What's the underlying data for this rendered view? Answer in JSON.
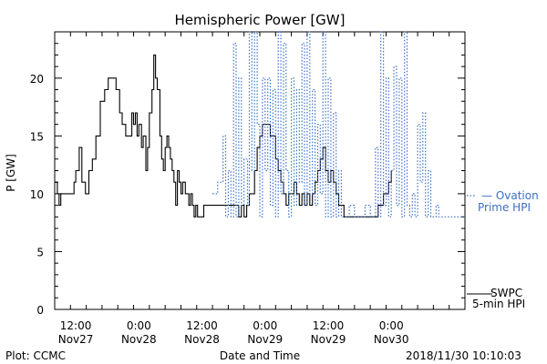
{
  "colors": {
    "observed": "#000000",
    "model": "#3b6fc4",
    "axis": "#000000"
  },
  "chart_data": {
    "type": "line",
    "title": "Hemispheric Power [GW]",
    "xlabel": "Date and Time",
    "ylabel": "P [GW]",
    "ylim": [
      0,
      24
    ],
    "xlim": [
      "2018-11-27T08:00",
      "2018-11-30T14:00"
    ],
    "y_ticks": [
      0,
      5,
      10,
      15,
      20
    ],
    "x_ticks": [
      {
        "time": "2018-11-27T12:00",
        "label1": "12:00",
        "label2": "Nov27"
      },
      {
        "time": "2018-11-28T00:00",
        "label1": "0:00",
        "label2": "Nov28"
      },
      {
        "time": "2018-11-28T12:00",
        "label1": "12:00",
        "label2": "Nov28"
      },
      {
        "time": "2018-11-29T00:00",
        "label1": "0:00",
        "label2": "Nov29"
      },
      {
        "time": "2018-11-29T12:00",
        "label1": "12:00",
        "label2": "Nov29"
      },
      {
        "time": "2018-11-30T00:00",
        "label1": "0:00",
        "label2": "Nov30"
      }
    ],
    "legend": [
      {
        "label_line1": "— Ovation",
        "label_line2": "Prime HPI"
      },
      {
        "label_line1": "SWPC",
        "label_line2": "5-min HPI"
      }
    ],
    "series": [
      {
        "name": "SWPC 5-min HPI",
        "style": "solid",
        "points": [
          [
            "2018-11-27T08:00",
            11
          ],
          [
            "2018-11-27T08:30",
            10
          ],
          [
            "2018-11-27T08:50",
            9
          ],
          [
            "2018-11-27T09:10",
            10
          ],
          [
            "2018-11-27T10:00",
            10
          ],
          [
            "2018-11-27T11:00",
            10
          ],
          [
            "2018-11-27T11:40",
            11
          ],
          [
            "2018-11-27T12:00",
            12
          ],
          [
            "2018-11-27T12:40",
            14
          ],
          [
            "2018-11-27T13:10",
            11
          ],
          [
            "2018-11-27T13:50",
            10
          ],
          [
            "2018-11-27T14:30",
            12
          ],
          [
            "2018-11-27T15:10",
            13
          ],
          [
            "2018-11-27T15:50",
            15
          ],
          [
            "2018-11-27T16:40",
            18
          ],
          [
            "2018-11-27T17:30",
            19
          ],
          [
            "2018-11-27T18:10",
            20
          ],
          [
            "2018-11-27T19:10",
            20
          ],
          [
            "2018-11-27T19:40",
            19
          ],
          [
            "2018-11-27T20:20",
            17
          ],
          [
            "2018-11-27T20:50",
            16
          ],
          [
            "2018-11-27T21:30",
            15
          ],
          [
            "2018-11-27T22:10",
            15
          ],
          [
            "2018-11-27T22:40",
            17
          ],
          [
            "2018-11-27T23:00",
            16
          ],
          [
            "2018-11-27T23:20",
            17
          ],
          [
            "2018-11-27T23:40",
            15
          ],
          [
            "2018-11-28T00:00",
            16
          ],
          [
            "2018-11-28T00:30",
            14
          ],
          [
            "2018-11-28T00:50",
            15
          ],
          [
            "2018-11-28T01:20",
            12
          ],
          [
            "2018-11-28T01:40",
            14
          ],
          [
            "2018-11-28T02:00",
            17
          ],
          [
            "2018-11-28T02:30",
            19
          ],
          [
            "2018-11-28T02:50",
            22
          ],
          [
            "2018-11-28T03:10",
            20
          ],
          [
            "2018-11-28T03:30",
            19
          ],
          [
            "2018-11-28T04:00",
            15
          ],
          [
            "2018-11-28T04:20",
            13
          ],
          [
            "2018-11-28T04:40",
            12
          ],
          [
            "2018-11-28T05:00",
            14
          ],
          [
            "2018-11-28T05:20",
            15
          ],
          [
            "2018-11-28T05:40",
            14
          ],
          [
            "2018-11-28T06:00",
            13
          ],
          [
            "2018-11-28T06:20",
            12
          ],
          [
            "2018-11-28T06:40",
            11
          ],
          [
            "2018-11-28T07:00",
            9
          ],
          [
            "2018-11-28T07:20",
            12
          ],
          [
            "2018-11-28T07:40",
            11
          ],
          [
            "2018-11-28T08:00",
            10
          ],
          [
            "2018-11-28T08:20",
            11
          ],
          [
            "2018-11-28T08:50",
            10
          ],
          [
            "2018-11-28T09:10",
            10
          ],
          [
            "2018-11-28T09:30",
            9
          ],
          [
            "2018-11-28T09:50",
            10
          ],
          [
            "2018-11-28T10:10",
            9
          ],
          [
            "2018-11-28T10:30",
            8
          ],
          [
            "2018-11-28T10:50",
            9
          ],
          [
            "2018-11-28T11:10",
            8
          ],
          [
            "2018-11-28T11:40",
            8
          ],
          [
            "2018-11-28T12:00",
            8
          ],
          [
            "2018-11-28T12:20",
            9
          ],
          [
            "2018-11-28T14:00",
            9
          ],
          [
            "2018-11-28T16:00",
            9
          ],
          [
            "2018-11-28T17:00",
            9
          ],
          [
            "2018-11-28T18:00",
            9
          ],
          [
            "2018-11-28T18:40",
            9
          ],
          [
            "2018-11-28T19:00",
            8
          ],
          [
            "2018-11-28T19:30",
            9
          ],
          [
            "2018-11-28T20:00",
            8
          ],
          [
            "2018-11-28T20:30",
            9
          ],
          [
            "2018-11-28T21:00",
            10
          ],
          [
            "2018-11-28T21:30",
            10
          ],
          [
            "2018-11-28T22:00",
            12
          ],
          [
            "2018-11-28T22:30",
            14
          ],
          [
            "2018-11-28T23:00",
            15
          ],
          [
            "2018-11-28T23:30",
            16
          ],
          [
            "2018-11-29T00:00",
            16
          ],
          [
            "2018-11-29T00:30",
            16
          ],
          [
            "2018-11-29T01:00",
            15
          ],
          [
            "2018-11-29T01:30",
            15
          ],
          [
            "2018-11-29T02:00",
            13
          ],
          [
            "2018-11-29T02:30",
            12
          ],
          [
            "2018-11-29T03:00",
            11
          ],
          [
            "2018-11-29T03:30",
            10
          ],
          [
            "2018-11-29T04:00",
            9
          ],
          [
            "2018-11-29T04:30",
            10
          ],
          [
            "2018-11-29T05:00",
            10
          ],
          [
            "2018-11-29T05:30",
            11
          ],
          [
            "2018-11-29T06:00",
            10
          ],
          [
            "2018-11-29T06:30",
            9
          ],
          [
            "2018-11-29T07:00",
            10
          ],
          [
            "2018-11-29T07:30",
            9
          ],
          [
            "2018-11-29T08:00",
            10
          ],
          [
            "2018-11-29T08:30",
            9
          ],
          [
            "2018-11-29T09:00",
            10
          ],
          [
            "2018-11-29T09:30",
            11
          ],
          [
            "2018-11-29T10:00",
            12
          ],
          [
            "2018-11-29T10:30",
            13
          ],
          [
            "2018-11-29T11:00",
            14
          ],
          [
            "2018-11-29T11:30",
            12
          ],
          [
            "2018-11-29T12:00",
            11
          ],
          [
            "2018-11-29T12:30",
            12
          ],
          [
            "2018-11-29T13:00",
            11
          ],
          [
            "2018-11-29T13:30",
            10
          ],
          [
            "2018-11-29T14:00",
            9
          ],
          [
            "2018-11-29T14:30",
            9
          ],
          [
            "2018-11-29T15:00",
            8
          ],
          [
            "2018-11-29T18:00",
            8
          ],
          [
            "2018-11-29T21:00",
            8
          ],
          [
            "2018-11-29T21:30",
            9
          ],
          [
            "2018-11-29T22:00",
            9
          ],
          [
            "2018-11-29T22:30",
            10
          ],
          [
            "2018-11-29T23:00",
            10
          ],
          [
            "2018-11-29T23:30",
            11
          ],
          [
            "2018-11-30T00:00",
            12
          ]
        ]
      },
      {
        "name": "Ovation Prime HPI",
        "style": "dotted",
        "points": [
          [
            "2018-11-28T14:00",
            10
          ],
          [
            "2018-11-28T15:00",
            11
          ],
          [
            "2018-11-28T16:00",
            15
          ],
          [
            "2018-11-28T16:30",
            8
          ],
          [
            "2018-11-28T17:00",
            12
          ],
          [
            "2018-11-28T17:30",
            8
          ],
          [
            "2018-11-28T18:00",
            23
          ],
          [
            "2018-11-28T18:30",
            8
          ],
          [
            "2018-11-28T19:00",
            20
          ],
          [
            "2018-11-28T19:30",
            9
          ],
          [
            "2018-11-28T20:00",
            13
          ],
          [
            "2018-11-28T20:40",
            9
          ],
          [
            "2018-11-28T21:00",
            24
          ],
          [
            "2018-11-28T21:30",
            12
          ],
          [
            "2018-11-28T22:00",
            24
          ],
          [
            "2018-11-28T22:30",
            16
          ],
          [
            "2018-11-28T23:00",
            8
          ],
          [
            "2018-11-28T23:30",
            20
          ],
          [
            "2018-11-29T00:00",
            12
          ],
          [
            "2018-11-29T00:30",
            20
          ],
          [
            "2018-11-29T01:00",
            9
          ],
          [
            "2018-11-29T01:30",
            19
          ],
          [
            "2018-11-29T02:00",
            8
          ],
          [
            "2018-11-29T02:30",
            24
          ],
          [
            "2018-11-29T03:00",
            10
          ],
          [
            "2018-11-29T03:30",
            23
          ],
          [
            "2018-11-29T04:00",
            12
          ],
          [
            "2018-11-29T04:30",
            8
          ],
          [
            "2018-11-29T05:00",
            20
          ],
          [
            "2018-11-29T05:30",
            9
          ],
          [
            "2018-11-29T06:00",
            19
          ],
          [
            "2018-11-29T06:30",
            11
          ],
          [
            "2018-11-29T07:00",
            23
          ],
          [
            "2018-11-29T07:30",
            9
          ],
          [
            "2018-11-29T08:00",
            24
          ],
          [
            "2018-11-29T08:30",
            10
          ],
          [
            "2018-11-29T09:00",
            19
          ],
          [
            "2018-11-29T09:30",
            9
          ],
          [
            "2018-11-29T10:00",
            16
          ],
          [
            "2018-11-29T10:30",
            10
          ],
          [
            "2018-11-29T11:00",
            24
          ],
          [
            "2018-11-29T11:30",
            8
          ],
          [
            "2018-11-29T12:00",
            20
          ],
          [
            "2018-11-29T12:30",
            8
          ],
          [
            "2018-11-29T13:00",
            17
          ],
          [
            "2018-11-29T13:30",
            8
          ],
          [
            "2018-11-29T14:00",
            12
          ],
          [
            "2018-11-29T14:30",
            8
          ],
          [
            "2018-11-29T15:00",
            8
          ],
          [
            "2018-11-29T16:00",
            9
          ],
          [
            "2018-11-29T17:00",
            8
          ],
          [
            "2018-11-29T18:00",
            8
          ],
          [
            "2018-11-29T19:00",
            9
          ],
          [
            "2018-11-29T20:00",
            8
          ],
          [
            "2018-11-29T21:00",
            14
          ],
          [
            "2018-11-29T21:30",
            8
          ],
          [
            "2018-11-29T22:00",
            24
          ],
          [
            "2018-11-29T22:30",
            9
          ],
          [
            "2018-11-29T23:00",
            20
          ],
          [
            "2018-11-29T23:30",
            8
          ],
          [
            "2018-11-30T00:00",
            12
          ],
          [
            "2018-11-30T00:30",
            21
          ],
          [
            "2018-11-30T01:00",
            9
          ],
          [
            "2018-11-30T01:30",
            20
          ],
          [
            "2018-11-30T02:00",
            8
          ],
          [
            "2018-11-30T02:30",
            24
          ],
          [
            "2018-11-30T03:00",
            9
          ],
          [
            "2018-11-30T03:30",
            8
          ],
          [
            "2018-11-30T04:00",
            10
          ],
          [
            "2018-11-30T04:30",
            8
          ],
          [
            "2018-11-30T05:00",
            16
          ],
          [
            "2018-11-30T05:30",
            11
          ],
          [
            "2018-11-30T06:00",
            17
          ],
          [
            "2018-11-30T06:30",
            8
          ],
          [
            "2018-11-30T07:00",
            12
          ],
          [
            "2018-11-30T07:30",
            8
          ],
          [
            "2018-11-30T08:00",
            8
          ],
          [
            "2018-11-30T08:30",
            9
          ],
          [
            "2018-11-30T09:00",
            8
          ],
          [
            "2018-11-30T10:00",
            8
          ],
          [
            "2018-11-30T11:00",
            8
          ],
          [
            "2018-11-30T12:00",
            8
          ],
          [
            "2018-11-30T13:00",
            8
          ],
          [
            "2018-11-30T14:00",
            8
          ]
        ]
      }
    ],
    "grid": false
  },
  "footer": {
    "left": "Plot: CCMC",
    "center": "Date and Time",
    "right": "2018/11/30 10:10:03"
  }
}
